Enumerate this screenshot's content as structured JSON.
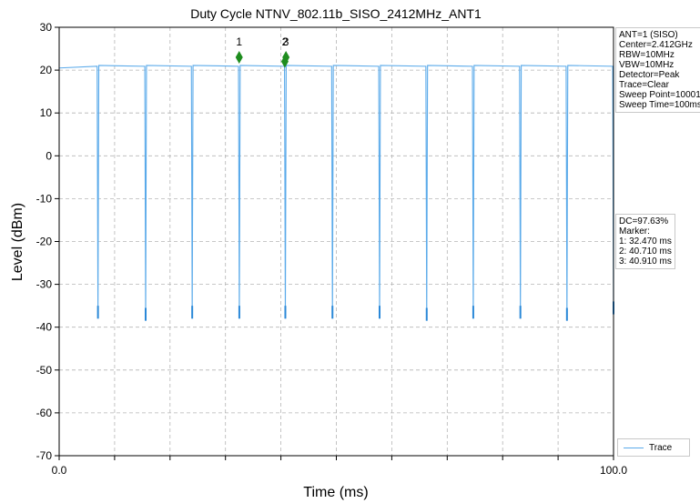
{
  "chart_data": {
    "type": "line",
    "title": "Duty Cycle NTNV_802.11b_SISO_2412MHz_ANT1",
    "xlabel": "Time (ms)",
    "ylabel": "Level (dBm)",
    "xlim": [
      0.0,
      100.0
    ],
    "ylim": [
      -70,
      30
    ],
    "x_tick_labels": [
      "0.0",
      "100.0"
    ],
    "x_minor_ticks": [
      10,
      20,
      30,
      40,
      50,
      60,
      70,
      80,
      90
    ],
    "y_ticks": [
      30,
      20,
      10,
      0,
      -10,
      -20,
      -30,
      -40,
      -50,
      -60,
      -70
    ],
    "grid": true,
    "legend_position": "bottom-right",
    "series": [
      {
        "name": "Trace",
        "color": "#5aaaea",
        "baseline_level": 20.5,
        "dips": [
          {
            "x": 7.0,
            "y": -38
          },
          {
            "x": 15.6,
            "y": -38.5
          },
          {
            "x": 24.0,
            "y": -38
          },
          {
            "x": 32.5,
            "y": -38
          },
          {
            "x": 40.8,
            "y": -38
          },
          {
            "x": 49.3,
            "y": -38
          },
          {
            "x": 57.8,
            "y": -38
          },
          {
            "x": 66.3,
            "y": -38.5
          },
          {
            "x": 74.7,
            "y": -38
          },
          {
            "x": 83.2,
            "y": -38
          },
          {
            "x": 91.6,
            "y": -38.5
          },
          {
            "x": 100.0,
            "y": -37
          }
        ]
      }
    ],
    "markers": [
      {
        "label": "1",
        "x": 32.47,
        "y": 23.0
      },
      {
        "label": "2",
        "x": 40.71,
        "y": 22.0
      },
      {
        "label": "3",
        "x": 40.91,
        "y": 23.0
      }
    ],
    "marker_color": "#1e8c1e"
  },
  "info_top": [
    "ANT=1 (SISO)",
    "Center=2.412GHz",
    "RBW=10MHz",
    "VBW=10MHz",
    "Detector=Peak",
    "Trace=Clear",
    "Sweep Point=10001",
    "Sweep Time=100ms"
  ],
  "info_bottom": [
    "DC=97.63%",
    "Marker:",
    "1: 32.470 ms",
    "2: 40.710 ms",
    "3: 40.910 ms"
  ],
  "legend": {
    "label": "Trace"
  }
}
